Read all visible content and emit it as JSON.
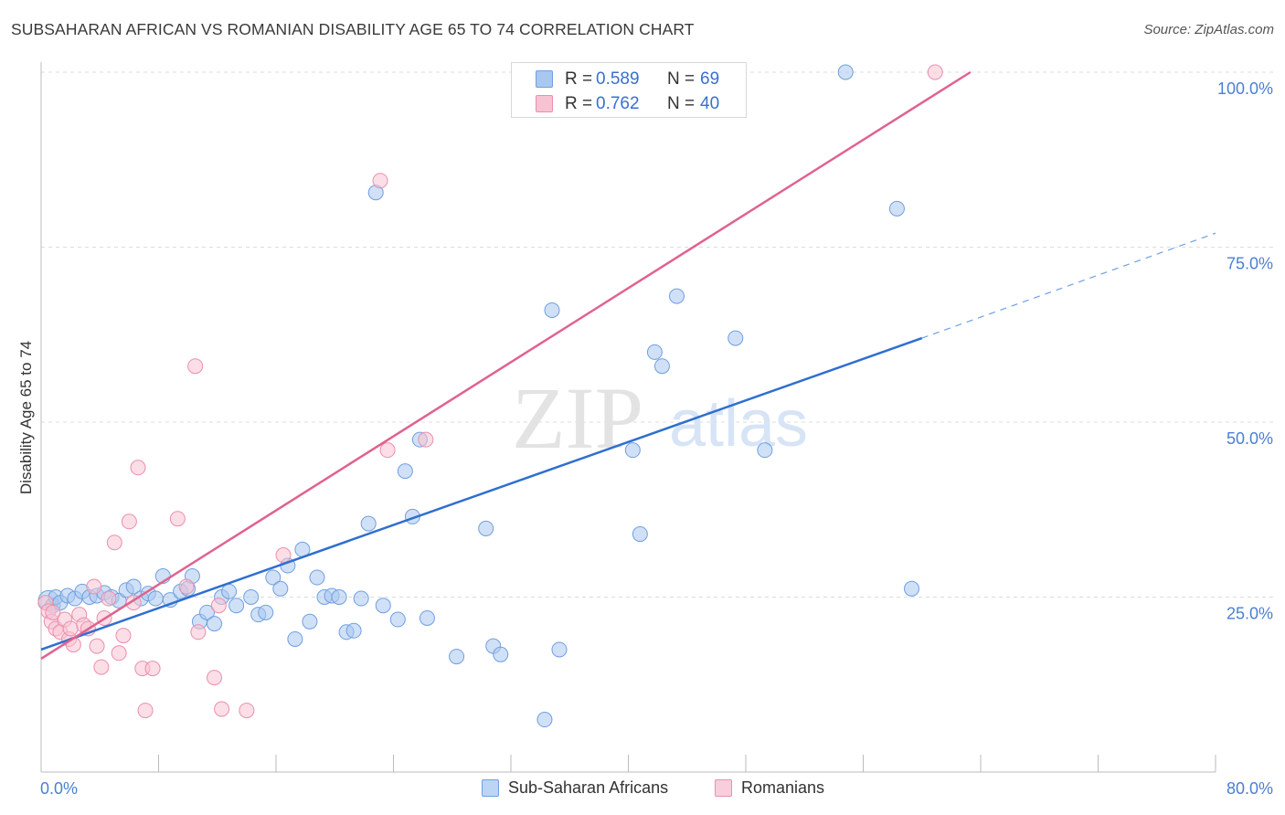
{
  "title": "SUBSAHARAN AFRICAN VS ROMANIAN DISABILITY AGE 65 TO 74 CORRELATION CHART",
  "source": "Source: ZipAtlas.com",
  "watermark": {
    "zip": "ZIP",
    "atlas": "atlas"
  },
  "legend_top": {
    "rows": [
      {
        "r_label": "R =",
        "r_value": "0.589",
        "n_label": "N =",
        "n_value": "69",
        "color": "#a9c8f0",
        "border": "#6f9fe0"
      },
      {
        "r_label": "R =",
        "r_value": "0.762",
        "n_label": "N =",
        "n_value": "40",
        "color": "#f7c2d2",
        "border": "#ea8fae"
      }
    ]
  },
  "legend_bottom": [
    {
      "label": "Sub-Saharan Africans",
      "color": "#bcd5f5",
      "border": "#6f9fe0"
    },
    {
      "label": "Romanians",
      "color": "#f9cddb",
      "border": "#ea8fae"
    }
  ],
  "chart_data": {
    "type": "scatter",
    "title": "SUBSAHARAN AFRICAN VS ROMANIAN DISABILITY AGE 65 TO 74 CORRELATION CHART",
    "xlabel": "",
    "ylabel": "Disability Age 65 to 74",
    "xlim": [
      0,
      80
    ],
    "ylim": [
      0,
      103
    ],
    "x_tick_labels": [
      "0.0%",
      "80.0%"
    ],
    "y_ticks": [
      25,
      50,
      75,
      100
    ],
    "y_tick_labels": [
      "25.0%",
      "50.0%",
      "75.0%",
      "100.0%"
    ],
    "grid": true,
    "series": [
      {
        "name": "Sub-Saharan Africans",
        "color": "#6f9fe0",
        "fill": "#a9c8f0",
        "points": [
          [
            0.5,
            24.5
          ],
          [
            0.8,
            23.8
          ],
          [
            1.0,
            25.0
          ],
          [
            1.3,
            24.2
          ],
          [
            1.8,
            25.2
          ],
          [
            2.3,
            24.8
          ],
          [
            2.8,
            25.8
          ],
          [
            3.3,
            25.0
          ],
          [
            3.8,
            25.2
          ],
          [
            4.3,
            25.6
          ],
          [
            4.8,
            25.0
          ],
          [
            5.3,
            24.5
          ],
          [
            5.8,
            26.0
          ],
          [
            6.3,
            26.5
          ],
          [
            6.8,
            24.8
          ],
          [
            7.3,
            25.5
          ],
          [
            7.8,
            24.8
          ],
          [
            8.3,
            28.0
          ],
          [
            8.8,
            24.6
          ],
          [
            9.5,
            25.8
          ],
          [
            10.0,
            26.2
          ],
          [
            10.3,
            28.0
          ],
          [
            10.8,
            21.5
          ],
          [
            11.3,
            22.8
          ],
          [
            11.8,
            21.2
          ],
          [
            12.3,
            25.0
          ],
          [
            12.8,
            25.8
          ],
          [
            13.3,
            23.8
          ],
          [
            14.3,
            25.0
          ],
          [
            14.8,
            22.5
          ],
          [
            15.3,
            22.8
          ],
          [
            15.8,
            27.8
          ],
          [
            16.3,
            26.2
          ],
          [
            16.8,
            29.5
          ],
          [
            17.3,
            19.0
          ],
          [
            17.8,
            31.8
          ],
          [
            18.3,
            21.5
          ],
          [
            18.8,
            27.8
          ],
          [
            19.3,
            25.0
          ],
          [
            19.8,
            25.2
          ],
          [
            20.3,
            25.0
          ],
          [
            20.8,
            20.0
          ],
          [
            21.3,
            20.2
          ],
          [
            21.8,
            24.8
          ],
          [
            22.3,
            35.5
          ],
          [
            22.8,
            82.8
          ],
          [
            23.3,
            23.8
          ],
          [
            24.3,
            21.8
          ],
          [
            24.8,
            43.0
          ],
          [
            25.3,
            36.5
          ],
          [
            25.8,
            47.5
          ],
          [
            26.3,
            22.0
          ],
          [
            28.3,
            16.5
          ],
          [
            30.3,
            34.8
          ],
          [
            30.8,
            18.0
          ],
          [
            31.3,
            16.8
          ],
          [
            34.3,
            7.5
          ],
          [
            34.8,
            66.0
          ],
          [
            35.3,
            17.5
          ],
          [
            40.3,
            46.0
          ],
          [
            40.8,
            34.0
          ],
          [
            41.8,
            60.0
          ],
          [
            42.3,
            58.0
          ],
          [
            43.3,
            68.0
          ],
          [
            47.3,
            62.0
          ],
          [
            49.3,
            46.0
          ],
          [
            54.8,
            100.0
          ],
          [
            58.3,
            80.5
          ],
          [
            59.3,
            26.2
          ]
        ],
        "trend": {
          "x0": 0,
          "y0": 17.5,
          "x1": 60,
          "y1": 62.0,
          "dash_x1": 80,
          "dash_y1": 77.0
        }
      },
      {
        "name": "Romanians",
        "color": "#ea8fae",
        "fill": "#f7c2d2",
        "points": [
          [
            0.3,
            24.2
          ],
          [
            0.5,
            23.0
          ],
          [
            0.7,
            21.5
          ],
          [
            1.0,
            20.5
          ],
          [
            1.3,
            20.0
          ],
          [
            1.6,
            21.8
          ],
          [
            1.9,
            19.0
          ],
          [
            2.2,
            18.2
          ],
          [
            2.6,
            22.5
          ],
          [
            2.9,
            21.0
          ],
          [
            3.2,
            20.5
          ],
          [
            3.6,
            26.5
          ],
          [
            3.8,
            18.0
          ],
          [
            4.1,
            15.0
          ],
          [
            4.3,
            22.0
          ],
          [
            4.6,
            24.8
          ],
          [
            5.0,
            32.8
          ],
          [
            5.3,
            17.0
          ],
          [
            5.6,
            19.5
          ],
          [
            6.0,
            35.8
          ],
          [
            6.3,
            24.2
          ],
          [
            6.6,
            43.5
          ],
          [
            6.9,
            14.8
          ],
          [
            7.1,
            8.8
          ],
          [
            7.6,
            14.8
          ],
          [
            9.3,
            36.2
          ],
          [
            9.9,
            26.5
          ],
          [
            10.5,
            58.0
          ],
          [
            10.7,
            20.0
          ],
          [
            11.8,
            13.5
          ],
          [
            12.1,
            23.8
          ],
          [
            12.3,
            9.0
          ],
          [
            14.0,
            8.8
          ],
          [
            16.5,
            31.0
          ],
          [
            23.1,
            84.5
          ],
          [
            23.6,
            46.0
          ],
          [
            26.2,
            47.5
          ],
          [
            60.9,
            100.0
          ],
          [
            0.8,
            22.8
          ],
          [
            2.0,
            20.5
          ]
        ],
        "trend": {
          "x0": 0,
          "y0": 16.2,
          "x1": 63.3,
          "y1": 100.0
        }
      }
    ]
  }
}
